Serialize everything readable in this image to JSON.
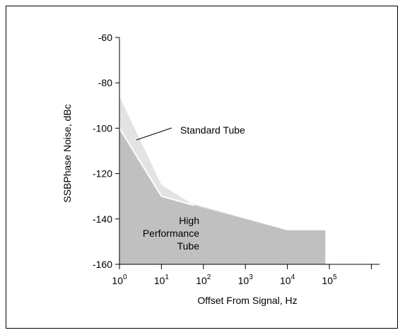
{
  "chart_data": {
    "type": "area",
    "xlabel": "Offset From Signal, Hz",
    "ylabel": "SSBPhase Noise, dBc",
    "x_scale": "log",
    "xlim": [
      1,
      1000000
    ],
    "ylim": [
      -160,
      -60
    ],
    "grid": false,
    "x_ticks": [
      {
        "value": 1,
        "base": "10",
        "exp": "0"
      },
      {
        "value": 10,
        "base": "10",
        "exp": "1"
      },
      {
        "value": 100,
        "base": "10",
        "exp": "2"
      },
      {
        "value": 1000,
        "base": "10",
        "exp": "3"
      },
      {
        "value": 10000,
        "base": "10",
        "exp": "4"
      },
      {
        "value": 100000,
        "base": "10",
        "exp": "5"
      }
    ],
    "y_ticks": [
      "-60",
      "-80",
      "-100",
      "-120",
      "-140",
      "-160"
    ],
    "y_tick_values": [
      -60,
      -80,
      -100,
      -120,
      -140,
      -160
    ],
    "series": [
      {
        "name": "Standard Tube",
        "color": "#e3e3e3",
        "points": [
          [
            1,
            -86
          ],
          [
            10,
            -125
          ],
          [
            50,
            -133
          ],
          [
            10000,
            -145
          ],
          [
            80000,
            -145
          ]
        ]
      },
      {
        "name": "High Performance Tube",
        "color": "#c0c0c0",
        "points": [
          [
            1,
            -100
          ],
          [
            10,
            -130
          ],
          [
            60,
            -134
          ],
          [
            10000,
            -145
          ],
          [
            80000,
            -145
          ]
        ]
      }
    ],
    "annotations": {
      "standard": "Standard Tube",
      "high_line1": "High",
      "high_line2": "Performance",
      "high_line3": "Tube"
    }
  }
}
